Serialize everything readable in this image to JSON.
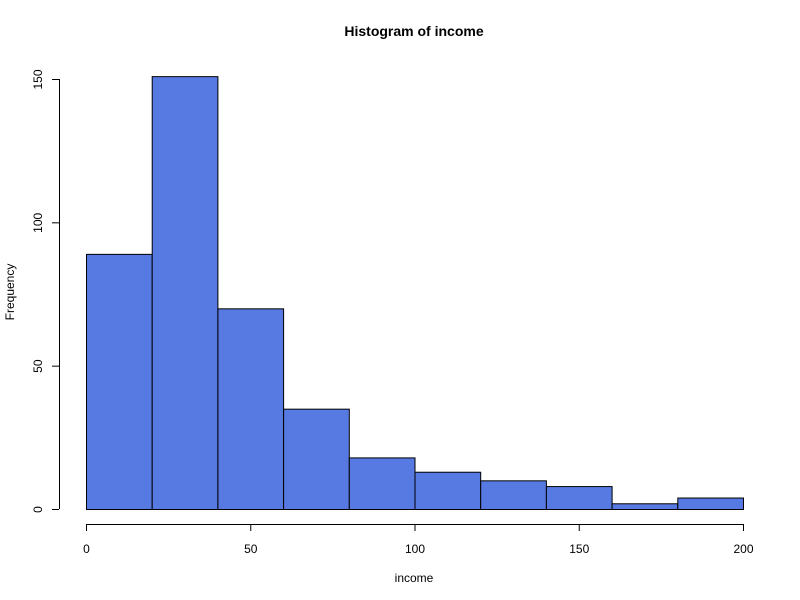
{
  "chart_data": {
    "type": "bar",
    "title": "Histogram of  income",
    "xlabel": "income",
    "ylabel": "Frequency",
    "bin_edges": [
      0,
      20,
      40,
      60,
      80,
      100,
      120,
      140,
      160,
      180,
      200
    ],
    "values": [
      89,
      151,
      70,
      35,
      18,
      13,
      10,
      8,
      2,
      4
    ],
    "xlim": [
      0,
      200
    ],
    "ylim": [
      0,
      150
    ],
    "x_ticks": [
      0,
      50,
      100,
      150,
      200
    ],
    "y_ticks": [
      0,
      50,
      100,
      150
    ],
    "bar_color": "#5779E2",
    "grid": false,
    "legend": "none"
  }
}
